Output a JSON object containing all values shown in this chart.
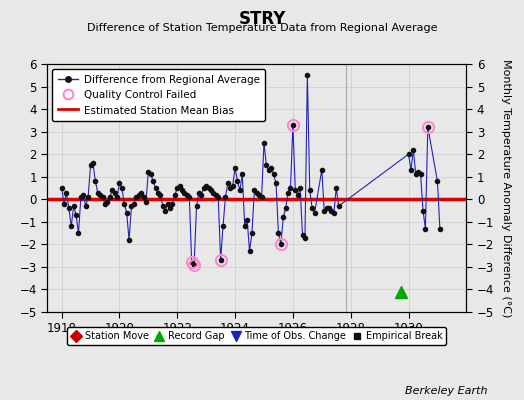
{
  "title": "STRY",
  "subtitle": "Difference of Station Temperature Data from Regional Average",
  "ylabel": "Monthly Temperature Anomaly Difference (°C)",
  "bias_value": 0.0,
  "xlim": [
    1917.5,
    1932.0
  ],
  "ylim": [
    -5,
    6
  ],
  "yticks": [
    -5,
    -4,
    -3,
    -2,
    -1,
    0,
    1,
    2,
    3,
    4,
    5,
    6
  ],
  "xticks": [
    1918,
    1920,
    1922,
    1924,
    1926,
    1928,
    1930
  ],
  "background_color": "#e8e8e8",
  "plot_bg_color": "#e8e8e8",
  "line_color": "#2222bb",
  "marker_color": "#111111",
  "bias_color": "#dd0000",
  "qc_color": "#ff88cc",
  "record_gap_color": "#00aa00",
  "time_obs_color": "#2222bb",
  "station_move_color": "#cc0000",
  "empirical_break_color": "#111111",
  "vertical_line_x": 1927.85,
  "record_gap_x": 1929.75,
  "record_gap_y": -4.1,
  "series": [
    [
      1918.0,
      0.5
    ],
    [
      1918.083,
      -0.2
    ],
    [
      1918.167,
      0.3
    ],
    [
      1918.25,
      -0.4
    ],
    [
      1918.333,
      -1.2
    ],
    [
      1918.417,
      -0.3
    ],
    [
      1918.5,
      -0.7
    ],
    [
      1918.583,
      -1.5
    ],
    [
      1918.667,
      0.1
    ],
    [
      1918.75,
      0.2
    ],
    [
      1918.833,
      -0.3
    ],
    [
      1918.917,
      0.1
    ],
    [
      1919.0,
      1.5
    ],
    [
      1919.083,
      1.6
    ],
    [
      1919.167,
      0.8
    ],
    [
      1919.25,
      0.3
    ],
    [
      1919.333,
      0.2
    ],
    [
      1919.417,
      0.1
    ],
    [
      1919.5,
      -0.2
    ],
    [
      1919.583,
      -0.1
    ],
    [
      1919.667,
      0.1
    ],
    [
      1919.75,
      0.4
    ],
    [
      1919.833,
      0.3
    ],
    [
      1919.917,
      0.1
    ],
    [
      1920.0,
      0.7
    ],
    [
      1920.083,
      0.5
    ],
    [
      1920.167,
      -0.2
    ],
    [
      1920.25,
      -0.6
    ],
    [
      1920.333,
      -1.8
    ],
    [
      1920.417,
      -0.3
    ],
    [
      1920.5,
      -0.2
    ],
    [
      1920.583,
      0.1
    ],
    [
      1920.667,
      0.2
    ],
    [
      1920.75,
      0.3
    ],
    [
      1920.833,
      0.1
    ],
    [
      1920.917,
      -0.1
    ],
    [
      1921.0,
      1.2
    ],
    [
      1921.083,
      1.1
    ],
    [
      1921.167,
      0.8
    ],
    [
      1921.25,
      0.5
    ],
    [
      1921.333,
      0.3
    ],
    [
      1921.417,
      0.2
    ],
    [
      1921.5,
      -0.3
    ],
    [
      1921.583,
      -0.5
    ],
    [
      1921.667,
      -0.2
    ],
    [
      1921.75,
      -0.4
    ],
    [
      1921.833,
      -0.2
    ],
    [
      1921.917,
      0.2
    ],
    [
      1922.0,
      0.5
    ],
    [
      1922.083,
      0.6
    ],
    [
      1922.167,
      0.4
    ],
    [
      1922.25,
      0.3
    ],
    [
      1922.333,
      0.2
    ],
    [
      1922.417,
      0.1
    ],
    [
      1922.5,
      -2.8
    ],
    [
      1922.583,
      -2.9
    ],
    [
      1922.667,
      -0.3
    ],
    [
      1922.75,
      0.3
    ],
    [
      1922.833,
      0.2
    ],
    [
      1922.917,
      0.5
    ],
    [
      1923.0,
      0.6
    ],
    [
      1923.083,
      0.5
    ],
    [
      1923.167,
      0.4
    ],
    [
      1923.25,
      0.3
    ],
    [
      1923.333,
      0.2
    ],
    [
      1923.417,
      0.1
    ],
    [
      1923.5,
      -2.7
    ],
    [
      1923.583,
      -1.2
    ],
    [
      1923.667,
      0.1
    ],
    [
      1923.75,
      0.7
    ],
    [
      1923.833,
      0.5
    ],
    [
      1923.917,
      0.6
    ],
    [
      1924.0,
      1.4
    ],
    [
      1924.083,
      0.8
    ],
    [
      1924.167,
      0.4
    ],
    [
      1924.25,
      1.1
    ],
    [
      1924.333,
      -1.2
    ],
    [
      1924.417,
      -0.9
    ],
    [
      1924.5,
      -2.3
    ],
    [
      1924.583,
      -1.5
    ],
    [
      1924.667,
      0.4
    ],
    [
      1924.75,
      0.3
    ],
    [
      1924.833,
      0.2
    ],
    [
      1924.917,
      0.1
    ],
    [
      1925.0,
      2.5
    ],
    [
      1925.083,
      1.5
    ],
    [
      1925.167,
      1.3
    ],
    [
      1925.25,
      1.4
    ],
    [
      1925.333,
      1.1
    ],
    [
      1925.417,
      0.7
    ],
    [
      1925.5,
      -1.5
    ],
    [
      1925.583,
      -2.0
    ],
    [
      1925.667,
      -0.8
    ],
    [
      1925.75,
      -0.4
    ],
    [
      1925.833,
      0.3
    ],
    [
      1925.917,
      0.5
    ],
    [
      1926.0,
      3.3
    ],
    [
      1926.083,
      0.4
    ],
    [
      1926.167,
      0.2
    ],
    [
      1926.25,
      0.5
    ],
    [
      1926.333,
      -1.6
    ],
    [
      1926.417,
      -1.7
    ],
    [
      1926.5,
      5.5
    ],
    [
      1926.583,
      0.4
    ],
    [
      1926.667,
      -0.4
    ],
    [
      1926.75,
      -0.6
    ],
    [
      1927.0,
      1.3
    ],
    [
      1927.083,
      -0.5
    ],
    [
      1927.167,
      -0.4
    ],
    [
      1927.25,
      -0.4
    ],
    [
      1927.333,
      -0.5
    ],
    [
      1927.417,
      -0.6
    ],
    [
      1927.5,
      0.5
    ],
    [
      1927.583,
      -0.3
    ],
    [
      1930.0,
      2.0
    ],
    [
      1930.083,
      1.3
    ],
    [
      1930.167,
      2.2
    ],
    [
      1930.25,
      1.1
    ],
    [
      1930.333,
      1.2
    ],
    [
      1930.417,
      1.1
    ],
    [
      1930.5,
      -0.5
    ],
    [
      1930.583,
      -1.3
    ],
    [
      1930.667,
      3.2
    ],
    [
      1931.0,
      0.8
    ],
    [
      1931.083,
      -1.3
    ]
  ],
  "qc_failed": [
    [
      1922.5,
      -2.8
    ],
    [
      1922.583,
      -2.9
    ],
    [
      1923.5,
      -2.7
    ],
    [
      1926.0,
      3.3
    ],
    [
      1925.583,
      -2.0
    ],
    [
      1930.667,
      3.2
    ]
  ],
  "vertical_line_color": "#aaaaaa",
  "grid_color": "#cccccc",
  "watermark": "Berkeley Earth"
}
